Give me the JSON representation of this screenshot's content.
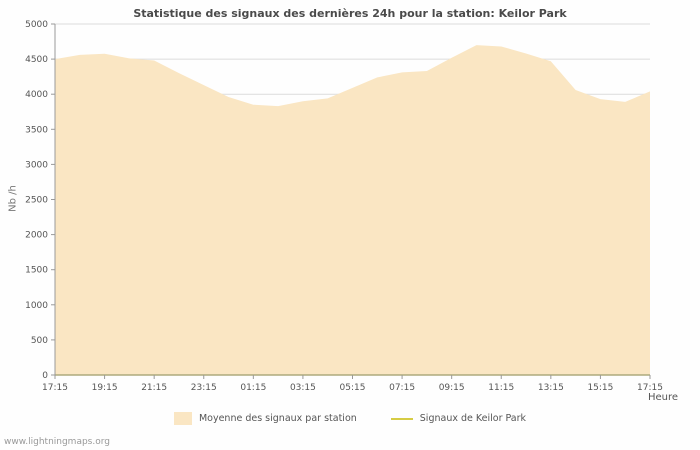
{
  "page": {
    "watermark": "www.lightningmaps.org"
  },
  "chart_data": {
    "type": "area",
    "title": "Statistique des signaux des dernières 24h pour la station: Keilor Park",
    "xlabel": "Heure",
    "ylabel": "Nb /h",
    "ylim": [
      0,
      5000
    ],
    "ytick_step": 500,
    "grid": "horizontal",
    "legend_position": "bottom",
    "x_ticks": [
      "17:15",
      "19:15",
      "21:15",
      "23:15",
      "01:15",
      "03:15",
      "05:15",
      "07:15",
      "09:15",
      "11:15",
      "13:15",
      "15:15",
      "17:15"
    ],
    "x_hours_span": 24,
    "series": [
      {
        "name": "Moyenne des signaux par station",
        "type": "area",
        "color": "#FAE6C3",
        "values": [
          4500,
          4560,
          4575,
          4510,
          4480,
          4300,
          4130,
          3960,
          3850,
          3830,
          3900,
          3940,
          4090,
          4240,
          4310,
          4330,
          4520,
          4700,
          4680,
          4580,
          4470,
          4060,
          3930,
          3890,
          4040
        ]
      },
      {
        "name": "Signaux de Keilor Park",
        "type": "line",
        "color": "#D6CC44",
        "values": [
          0,
          0,
          0,
          0,
          0,
          0,
          0,
          0,
          0,
          0,
          0,
          0,
          0,
          0,
          0,
          0,
          0,
          0,
          0,
          0,
          0,
          0,
          0,
          0,
          0
        ]
      }
    ]
  },
  "colors": {
    "grid": "#dcdcdc",
    "axis": "#999999",
    "tick_text": "#555555"
  }
}
